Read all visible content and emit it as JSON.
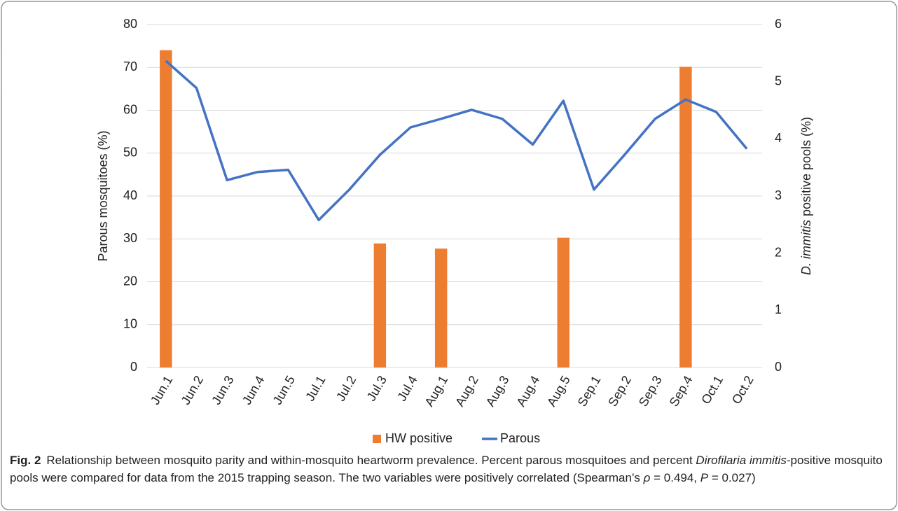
{
  "chart_data": {
    "type": "combo",
    "categories": [
      "Jun.1",
      "Jun.2",
      "Jun.3",
      "Jun.4",
      "Jun.5",
      "Jul.1",
      "Jul.2",
      "Jul.3",
      "Jul.4",
      "Aug.1",
      "Aug.2",
      "Aug.3",
      "Aug.4",
      "Aug.5",
      "Sep.1",
      "Sep.2",
      "Sep.3",
      "Sep.4",
      "Oct.1",
      "Oct.2"
    ],
    "series": [
      {
        "name": "HW positive",
        "type": "bar",
        "axis": "y2",
        "color": "#ed7d31",
        "values": [
          5.55,
          0,
          0,
          0,
          0,
          0,
          0,
          2.17,
          0,
          2.08,
          0,
          0,
          0,
          2.27,
          0,
          0,
          0,
          5.26,
          0,
          0
        ]
      },
      {
        "name": "Parous",
        "type": "line",
        "color": "#4472c4",
        "values": [
          71.5,
          65.2,
          43.7,
          45.6,
          46.1,
          34.4,
          41.5,
          49.6,
          56,
          58,
          60.1,
          58,
          52,
          62.2,
          41.5,
          49.6,
          58,
          62.5,
          59.6,
          51
        ]
      }
    ],
    "ylabel": "Parous mosquitoes (%)",
    "y2label": [
      "D. immitis",
      " positive pools (%)"
    ],
    "ylim": [
      0,
      80
    ],
    "yticks": [
      0,
      10,
      20,
      30,
      40,
      50,
      60,
      70,
      80
    ],
    "y2lim": [
      0,
      6
    ],
    "y2ticks": [
      0,
      1,
      2,
      3,
      4,
      5,
      6
    ],
    "grid": true,
    "legend": "bottom"
  },
  "caption": {
    "label": "Fig. 2",
    "parts": [
      "Relationship between mosquito parity and within-mosquito heartworm prevalence. Percent parous mosquitoes and percent ",
      "Dirofilaria immitis",
      "-positive mosquito pools were compared for data from the 2015 trapping season. The two variables were positively correlated (Spearman’s ",
      "ρ",
      " = 0.494, ",
      "P",
      " = 0.027)"
    ]
  }
}
